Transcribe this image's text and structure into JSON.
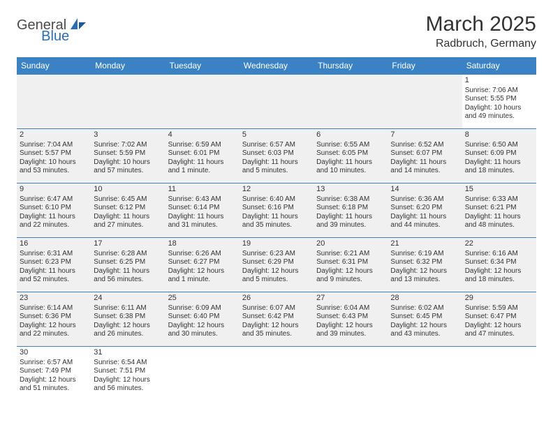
{
  "logo": {
    "part1": "General",
    "part2": "Blue"
  },
  "title": "March 2025",
  "location": "Radbruch, Germany",
  "colors": {
    "header_bg": "#3b82c4",
    "header_text": "#ffffff",
    "border": "#3b82c4",
    "shade": "#f0f0f0",
    "text": "#333333",
    "logo_gray": "#4a4a4a",
    "logo_blue": "#2a6fb5"
  },
  "day_headers": [
    "Sunday",
    "Monday",
    "Tuesday",
    "Wednesday",
    "Thursday",
    "Friday",
    "Saturday"
  ],
  "weeks": [
    [
      {
        "empty": true
      },
      {
        "empty": true
      },
      {
        "empty": true
      },
      {
        "empty": true
      },
      {
        "empty": true
      },
      {
        "empty": true
      },
      {
        "n": "1",
        "sr": "Sunrise: 7:06 AM",
        "ss": "Sunset: 5:55 PM",
        "d1": "Daylight: 10 hours",
        "d2": "and 49 minutes."
      }
    ],
    [
      {
        "n": "2",
        "sr": "Sunrise: 7:04 AM",
        "ss": "Sunset: 5:57 PM",
        "d1": "Daylight: 10 hours",
        "d2": "and 53 minutes."
      },
      {
        "n": "3",
        "sr": "Sunrise: 7:02 AM",
        "ss": "Sunset: 5:59 PM",
        "d1": "Daylight: 10 hours",
        "d2": "and 57 minutes."
      },
      {
        "n": "4",
        "sr": "Sunrise: 6:59 AM",
        "ss": "Sunset: 6:01 PM",
        "d1": "Daylight: 11 hours",
        "d2": "and 1 minute."
      },
      {
        "n": "5",
        "sr": "Sunrise: 6:57 AM",
        "ss": "Sunset: 6:03 PM",
        "d1": "Daylight: 11 hours",
        "d2": "and 5 minutes."
      },
      {
        "n": "6",
        "sr": "Sunrise: 6:55 AM",
        "ss": "Sunset: 6:05 PM",
        "d1": "Daylight: 11 hours",
        "d2": "and 10 minutes."
      },
      {
        "n": "7",
        "sr": "Sunrise: 6:52 AM",
        "ss": "Sunset: 6:07 PM",
        "d1": "Daylight: 11 hours",
        "d2": "and 14 minutes."
      },
      {
        "n": "8",
        "sr": "Sunrise: 6:50 AM",
        "ss": "Sunset: 6:09 PM",
        "d1": "Daylight: 11 hours",
        "d2": "and 18 minutes."
      }
    ],
    [
      {
        "n": "9",
        "sr": "Sunrise: 6:47 AM",
        "ss": "Sunset: 6:10 PM",
        "d1": "Daylight: 11 hours",
        "d2": "and 22 minutes."
      },
      {
        "n": "10",
        "sr": "Sunrise: 6:45 AM",
        "ss": "Sunset: 6:12 PM",
        "d1": "Daylight: 11 hours",
        "d2": "and 27 minutes."
      },
      {
        "n": "11",
        "sr": "Sunrise: 6:43 AM",
        "ss": "Sunset: 6:14 PM",
        "d1": "Daylight: 11 hours",
        "d2": "and 31 minutes."
      },
      {
        "n": "12",
        "sr": "Sunrise: 6:40 AM",
        "ss": "Sunset: 6:16 PM",
        "d1": "Daylight: 11 hours",
        "d2": "and 35 minutes."
      },
      {
        "n": "13",
        "sr": "Sunrise: 6:38 AM",
        "ss": "Sunset: 6:18 PM",
        "d1": "Daylight: 11 hours",
        "d2": "and 39 minutes."
      },
      {
        "n": "14",
        "sr": "Sunrise: 6:36 AM",
        "ss": "Sunset: 6:20 PM",
        "d1": "Daylight: 11 hours",
        "d2": "and 44 minutes."
      },
      {
        "n": "15",
        "sr": "Sunrise: 6:33 AM",
        "ss": "Sunset: 6:21 PM",
        "d1": "Daylight: 11 hours",
        "d2": "and 48 minutes."
      }
    ],
    [
      {
        "n": "16",
        "sr": "Sunrise: 6:31 AM",
        "ss": "Sunset: 6:23 PM",
        "d1": "Daylight: 11 hours",
        "d2": "and 52 minutes."
      },
      {
        "n": "17",
        "sr": "Sunrise: 6:28 AM",
        "ss": "Sunset: 6:25 PM",
        "d1": "Daylight: 11 hours",
        "d2": "and 56 minutes."
      },
      {
        "n": "18",
        "sr": "Sunrise: 6:26 AM",
        "ss": "Sunset: 6:27 PM",
        "d1": "Daylight: 12 hours",
        "d2": "and 1 minute."
      },
      {
        "n": "19",
        "sr": "Sunrise: 6:23 AM",
        "ss": "Sunset: 6:29 PM",
        "d1": "Daylight: 12 hours",
        "d2": "and 5 minutes."
      },
      {
        "n": "20",
        "sr": "Sunrise: 6:21 AM",
        "ss": "Sunset: 6:31 PM",
        "d1": "Daylight: 12 hours",
        "d2": "and 9 minutes."
      },
      {
        "n": "21",
        "sr": "Sunrise: 6:19 AM",
        "ss": "Sunset: 6:32 PM",
        "d1": "Daylight: 12 hours",
        "d2": "and 13 minutes."
      },
      {
        "n": "22",
        "sr": "Sunrise: 6:16 AM",
        "ss": "Sunset: 6:34 PM",
        "d1": "Daylight: 12 hours",
        "d2": "and 18 minutes."
      }
    ],
    [
      {
        "n": "23",
        "sr": "Sunrise: 6:14 AM",
        "ss": "Sunset: 6:36 PM",
        "d1": "Daylight: 12 hours",
        "d2": "and 22 minutes."
      },
      {
        "n": "24",
        "sr": "Sunrise: 6:11 AM",
        "ss": "Sunset: 6:38 PM",
        "d1": "Daylight: 12 hours",
        "d2": "and 26 minutes."
      },
      {
        "n": "25",
        "sr": "Sunrise: 6:09 AM",
        "ss": "Sunset: 6:40 PM",
        "d1": "Daylight: 12 hours",
        "d2": "and 30 minutes."
      },
      {
        "n": "26",
        "sr": "Sunrise: 6:07 AM",
        "ss": "Sunset: 6:42 PM",
        "d1": "Daylight: 12 hours",
        "d2": "and 35 minutes."
      },
      {
        "n": "27",
        "sr": "Sunrise: 6:04 AM",
        "ss": "Sunset: 6:43 PM",
        "d1": "Daylight: 12 hours",
        "d2": "and 39 minutes."
      },
      {
        "n": "28",
        "sr": "Sunrise: 6:02 AM",
        "ss": "Sunset: 6:45 PM",
        "d1": "Daylight: 12 hours",
        "d2": "and 43 minutes."
      },
      {
        "n": "29",
        "sr": "Sunrise: 5:59 AM",
        "ss": "Sunset: 6:47 PM",
        "d1": "Daylight: 12 hours",
        "d2": "and 47 minutes."
      }
    ],
    [
      {
        "n": "30",
        "sr": "Sunrise: 6:57 AM",
        "ss": "Sunset: 7:49 PM",
        "d1": "Daylight: 12 hours",
        "d2": "and 51 minutes."
      },
      {
        "n": "31",
        "sr": "Sunrise: 6:54 AM",
        "ss": "Sunset: 7:51 PM",
        "d1": "Daylight: 12 hours",
        "d2": "and 56 minutes."
      },
      {
        "empty": true
      },
      {
        "empty": true
      },
      {
        "empty": true
      },
      {
        "empty": true
      },
      {
        "empty": true
      }
    ]
  ]
}
